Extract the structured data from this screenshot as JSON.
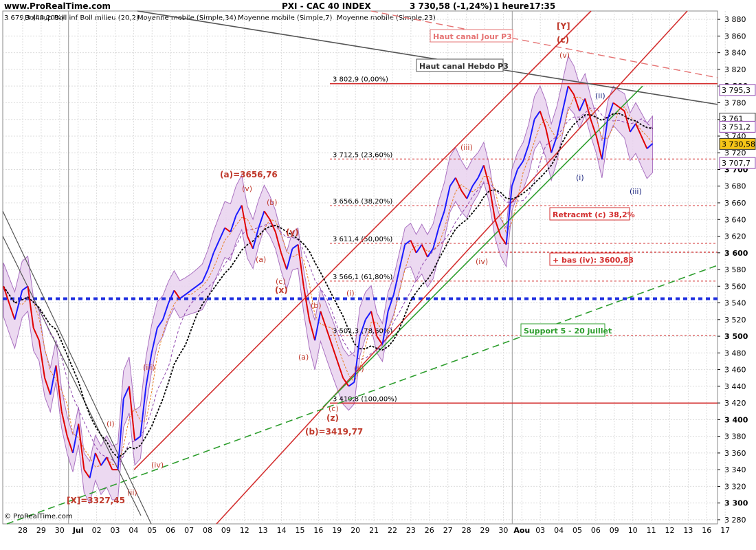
{
  "header": {
    "site": "www.ProRealTime.com",
    "symbol": "PXI - CAC 40 INDEX",
    "last": "3 730,58 (-1,24%)",
    "period": "1 heure",
    "time": "17:35",
    "watermark": "© ProRealTime.com"
  },
  "legend": {
    "bb_label": "Boll sup Boll inf Boll milieu (20,2)",
    "ma34": "Moyenne mobile (Simple,34)",
    "ma7": "Moyenne mobile (Simple,7)",
    "ma23": "Moyenne mobile (Simple,23)",
    "top_left_value": "3 679,3 (48,20%)"
  },
  "colors": {
    "price": "#1a1aff",
    "price_down": "#e00000",
    "bb_fill": "#e9d3ef",
    "bb_line": "#9b59b6",
    "ma34": "#000000",
    "ma7": "#e67e22",
    "ma23": "#8e44ad",
    "resistance": "#d32f2f",
    "support": "#2e9e2e",
    "hline_blue": "#1f2fe0",
    "weekly": "#555555"
  },
  "chart_data": {
    "type": "line",
    "title": "PXI - CAC 40 INDEX",
    "ylim": [
      3275,
      3890
    ],
    "y_ticks": [
      3280,
      3300,
      3320,
      3340,
      3360,
      3380,
      3400,
      3420,
      3440,
      3460,
      3480,
      3500,
      3520,
      3540,
      3560,
      3580,
      3600,
      3620,
      3640,
      3660,
      3680,
      3700,
      3720,
      3740,
      3760,
      3780,
      3800,
      3820,
      3840,
      3860,
      3880
    ],
    "y_ticks_bold": [
      3300,
      3400,
      3500,
      3600,
      3700,
      3800
    ],
    "x_labels": [
      "28",
      "29",
      "30",
      "Jul",
      "02",
      "03",
      "04",
      "05",
      "06",
      "07",
      "08",
      "09",
      "12",
      "13",
      "14",
      "15",
      "16",
      "19",
      "20",
      "21",
      "22",
      "23",
      "26",
      "27",
      "28",
      "29",
      "30",
      "Aou",
      "03",
      "04",
      "05",
      "06",
      "09",
      "10",
      "11",
      "12",
      "13",
      "16",
      "17"
    ],
    "x_labels_bold": [
      "Jul",
      "Aou"
    ],
    "price_series": [
      {
        "x": 0,
        "y": 3560
      },
      {
        "x": 0.3,
        "y": 3540
      },
      {
        "x": 0.6,
        "y": 3520
      },
      {
        "x": 1,
        "y": 3555
      },
      {
        "x": 1.3,
        "y": 3560
      },
      {
        "x": 1.6,
        "y": 3510
      },
      {
        "x": 1.9,
        "y": 3495
      },
      {
        "x": 2.2,
        "y": 3450
      },
      {
        "x": 2.5,
        "y": 3430
      },
      {
        "x": 2.8,
        "y": 3465
      },
      {
        "x": 3.1,
        "y": 3410
      },
      {
        "x": 3.4,
        "y": 3380
      },
      {
        "x": 3.7,
        "y": 3360
      },
      {
        "x": 4,
        "y": 3395
      },
      {
        "x": 4.3,
        "y": 3340
      },
      {
        "x": 4.6,
        "y": 3330
      },
      {
        "x": 4.9,
        "y": 3360
      },
      {
        "x": 5.2,
        "y": 3345
      },
      {
        "x": 5.5,
        "y": 3355
      },
      {
        "x": 5.8,
        "y": 3340
      },
      {
        "x": 6.1,
        "y": 3340
      },
      {
        "x": 6.4,
        "y": 3425
      },
      {
        "x": 6.7,
        "y": 3440
      },
      {
        "x": 7,
        "y": 3375
      },
      {
        "x": 7.3,
        "y": 3380
      },
      {
        "x": 7.6,
        "y": 3440
      },
      {
        "x": 7.9,
        "y": 3480
      },
      {
        "x": 8.2,
        "y": 3510
      },
      {
        "x": 8.5,
        "y": 3520
      },
      {
        "x": 8.8,
        "y": 3540
      },
      {
        "x": 9.1,
        "y": 3555
      },
      {
        "x": 9.4,
        "y": 3545
      },
      {
        "x": 9.7,
        "y": 3550
      },
      {
        "x": 10,
        "y": 3555
      },
      {
        "x": 10.3,
        "y": 3560
      },
      {
        "x": 10.6,
        "y": 3565
      },
      {
        "x": 10.9,
        "y": 3580
      },
      {
        "x": 11.2,
        "y": 3600
      },
      {
        "x": 11.5,
        "y": 3615
      },
      {
        "x": 11.8,
        "y": 3630
      },
      {
        "x": 12.1,
        "y": 3625
      },
      {
        "x": 12.4,
        "y": 3645
      },
      {
        "x": 12.7,
        "y": 3657
      },
      {
        "x": 13,
        "y": 3620
      },
      {
        "x": 13.3,
        "y": 3605
      },
      {
        "x": 13.6,
        "y": 3630
      },
      {
        "x": 13.9,
        "y": 3650
      },
      {
        "x": 14.2,
        "y": 3640
      },
      {
        "x": 14.5,
        "y": 3625
      },
      {
        "x": 14.8,
        "y": 3600
      },
      {
        "x": 15.1,
        "y": 3580
      },
      {
        "x": 15.4,
        "y": 3605
      },
      {
        "x": 15.7,
        "y": 3610
      },
      {
        "x": 16,
        "y": 3560
      },
      {
        "x": 16.3,
        "y": 3520
      },
      {
        "x": 16.6,
        "y": 3495
      },
      {
        "x": 16.9,
        "y": 3530
      },
      {
        "x": 17.2,
        "y": 3510
      },
      {
        "x": 17.5,
        "y": 3490
      },
      {
        "x": 17.8,
        "y": 3470
      },
      {
        "x": 18.1,
        "y": 3450
      },
      {
        "x": 18.4,
        "y": 3440
      },
      {
        "x": 18.7,
        "y": 3445
      },
      {
        "x": 19,
        "y": 3500
      },
      {
        "x": 19.3,
        "y": 3520
      },
      {
        "x": 19.6,
        "y": 3530
      },
      {
        "x": 19.9,
        "y": 3500
      },
      {
        "x": 20.2,
        "y": 3490
      },
      {
        "x": 20.5,
        "y": 3530
      },
      {
        "x": 20.8,
        "y": 3550
      },
      {
        "x": 21.1,
        "y": 3580
      },
      {
        "x": 21.4,
        "y": 3610
      },
      {
        "x": 21.7,
        "y": 3615
      },
      {
        "x": 22,
        "y": 3600
      },
      {
        "x": 22.3,
        "y": 3610
      },
      {
        "x": 22.6,
        "y": 3595
      },
      {
        "x": 22.9,
        "y": 3605
      },
      {
        "x": 23.2,
        "y": 3630
      },
      {
        "x": 23.5,
        "y": 3650
      },
      {
        "x": 23.8,
        "y": 3680
      },
      {
        "x": 24.1,
        "y": 3690
      },
      {
        "x": 24.4,
        "y": 3675
      },
      {
        "x": 24.7,
        "y": 3665
      },
      {
        "x": 25,
        "y": 3680
      },
      {
        "x": 25.3,
        "y": 3690
      },
      {
        "x": 25.6,
        "y": 3705
      },
      {
        "x": 25.9,
        "y": 3680
      },
      {
        "x": 26.2,
        "y": 3640
      },
      {
        "x": 26.5,
        "y": 3620
      },
      {
        "x": 26.8,
        "y": 3610
      },
      {
        "x": 27.1,
        "y": 3680
      },
      {
        "x": 27.4,
        "y": 3700
      },
      {
        "x": 27.7,
        "y": 3710
      },
      {
        "x": 28,
        "y": 3730
      },
      {
        "x": 28.3,
        "y": 3760
      },
      {
        "x": 28.6,
        "y": 3770
      },
      {
        "x": 28.9,
        "y": 3750
      },
      {
        "x": 29.2,
        "y": 3720
      },
      {
        "x": 29.5,
        "y": 3740
      },
      {
        "x": 29.8,
        "y": 3770
      },
      {
        "x": 30.1,
        "y": 3800
      },
      {
        "x": 30.4,
        "y": 3790
      },
      {
        "x": 30.7,
        "y": 3770
      },
      {
        "x": 31,
        "y": 3785
      },
      {
        "x": 31.3,
        "y": 3760
      },
      {
        "x": 31.6,
        "y": 3740
      },
      {
        "x": 31.9,
        "y": 3712
      },
      {
        "x": 32.2,
        "y": 3760
      },
      {
        "x": 32.5,
        "y": 3780
      },
      {
        "x": 32.8,
        "y": 3775
      },
      {
        "x": 33.1,
        "y": 3770
      },
      {
        "x": 33.4,
        "y": 3745
      },
      {
        "x": 33.7,
        "y": 3755
      },
      {
        "x": 34,
        "y": 3740
      },
      {
        "x": 34.3,
        "y": 3725
      },
      {
        "x": 34.6,
        "y": 3731
      }
    ],
    "h_lines": [
      {
        "label": "3 802,9 (0,00%)",
        "y": 3802.9
      },
      {
        "label": "3 712,5 (23,60%)",
        "y": 3712.5
      },
      {
        "label": "3 656,6 (38,20%)",
        "y": 3656.6
      },
      {
        "label": "3 611,4 (50,00%)",
        "y": 3611.4
      },
      {
        "label": "3 566,1 (61,80%)",
        "y": 3566.1
      },
      {
        "label": "3 501,3 (78,60%)",
        "y": 3501.3
      },
      {
        "label": "3 419,8 (100,00%)",
        "y": 3419.8
      }
    ],
    "blue_line_y": 3545,
    "bas_iv_y": 3600.83,
    "price_boxes": [
      "3 795,3",
      "3 761",
      "3 751,2",
      "3 730,58",
      "3 707,7"
    ],
    "annotations": {
      "a_top": "(a)=3656,76",
      "b_low": "(b)=3419,77",
      "x_low": "[X]=3327,45",
      "big_y": "[Y]",
      "c_top": "(c)",
      "y_paren": "(y)",
      "x_paren": "(x)",
      "z_paren": "(z)",
      "haut_jour": "Haut canal Jour P3",
      "haut_hebdo": "Haut canal Hebdo P3",
      "retracmt": "Retracmt (c) 38,2%",
      "bas_iv": "+ bas (iv): 3600,83",
      "support": "Support 5 - 20 juillet",
      "w_v1": "(v)",
      "w_v2": "(v)",
      "w_iii1": "(iii)",
      "w_iii2": "(iii)",
      "w_i1": "(i)",
      "w_i2": "(i)",
      "w_ii1": "(ii)",
      "w_ii2": "(ii)",
      "w_iv1": "(iv)",
      "w_iv2": "(iv)",
      "w_a1": "(a)",
      "w_a2": "(a)",
      "w_b1": "(b)",
      "w_b2": "(b)",
      "w_c1": "(c)",
      "w_c2": "(c)",
      "blue_i": "(i)",
      "blue_ii": "(ii)",
      "blue_iii": "(iii)"
    }
  }
}
